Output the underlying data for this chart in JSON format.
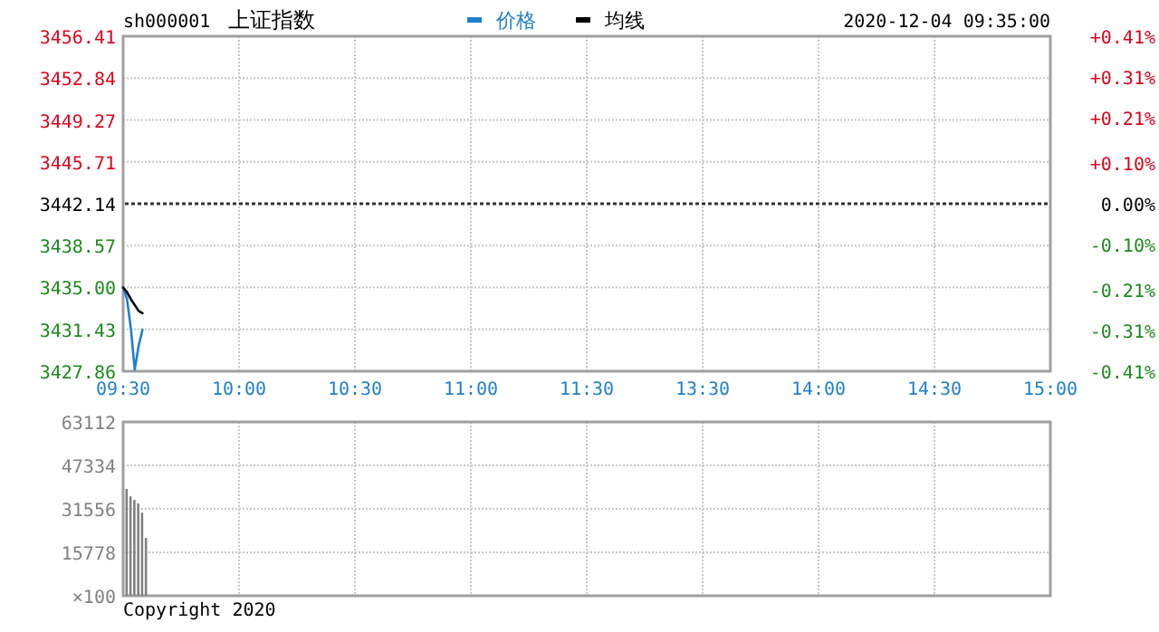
{
  "chart_data": [
    {
      "type": "line",
      "title": "上证指数",
      "annotations": [
        "sh000001",
        "2020-12-04 09:35:00"
      ],
      "legend": "top",
      "grid": true,
      "categories": [
        "09:30",
        null,
        null,
        null,
        null,
        null,
        null,
        null,
        null,
        null,
        null,
        null,
        null,
        null,
        null,
        null,
        null,
        null,
        null,
        null,
        null,
        null,
        null,
        null,
        null,
        null,
        null,
        null,
        null,
        null,
        "10:00",
        null,
        null,
        null,
        null,
        null,
        null,
        null,
        null,
        null,
        null,
        null,
        null,
        null,
        null,
        null,
        null,
        null,
        null,
        null,
        null,
        null,
        null,
        null,
        null,
        null,
        null,
        null,
        null,
        null,
        "10:30",
        null,
        null,
        null,
        null,
        null,
        null,
        null,
        null,
        null,
        null,
        null,
        null,
        null,
        null,
        null,
        null,
        null,
        null,
        null,
        null,
        null,
        null,
        null,
        null,
        null,
        null,
        null,
        null,
        null,
        "11:00",
        null,
        null,
        null,
        null,
        null,
        null,
        null,
        null,
        null,
        null,
        null,
        null,
        null,
        null,
        null,
        null,
        null,
        null,
        null,
        null,
        null,
        null,
        null,
        null,
        null,
        null,
        null,
        null,
        null,
        "11:30",
        null,
        null,
        null,
        null,
        null,
        null,
        null,
        null,
        null,
        null,
        null,
        null,
        null,
        null,
        null,
        null,
        null,
        null,
        null,
        null,
        null,
        null,
        null,
        null,
        null,
        null,
        null,
        null,
        null,
        "13:30",
        null,
        null,
        null,
        null,
        null,
        null,
        null,
        null,
        null,
        null,
        null,
        null,
        null,
        null,
        null,
        null,
        null,
        null,
        null,
        null,
        null,
        null,
        null,
        null,
        null,
        null,
        null,
        null,
        null,
        "14:00",
        null,
        null,
        null,
        null,
        null,
        null,
        null,
        null,
        null,
        null,
        null,
        null,
        null,
        null,
        null,
        null,
        null,
        null,
        null,
        null,
        null,
        null,
        null,
        null,
        null,
        null,
        null,
        null,
        null,
        "14:30",
        null,
        null,
        null,
        null,
        null,
        null,
        null,
        null,
        null,
        null,
        null,
        null,
        null,
        null,
        null,
        null,
        null,
        null,
        null,
        null,
        null,
        null,
        null,
        null,
        null,
        null,
        null,
        null,
        null,
        "15:00"
      ],
      "ylim": [
        3427.86,
        3456.41
      ],
      "yticks": [
        3427.86,
        3431.43,
        {
          "value": 3435.0,
          "label": "3435.00"
        },
        3438.57,
        3442.14,
        3445.71,
        3449.27,
        3452.84,
        3456.41
      ],
      "y2lim": [
        -0.41,
        0.41
      ],
      "y2ticks": [
        {
          "value": -0.41,
          "label": "-0.41%"
        },
        {
          "value": -0.31,
          "label": "-0.31%"
        },
        {
          "value": -0.21,
          "label": "-0.21%"
        },
        {
          "value": -0.1,
          "label": "-0.10%"
        },
        {
          "value": 0,
          "label": "0.00%"
        },
        {
          "value": 0.1,
          "label": "+0.10%"
        },
        {
          "value": 0.21,
          "label": "+0.21%"
        },
        {
          "value": 0.31,
          "label": "+0.31%"
        },
        {
          "value": 0.41,
          "label": "+0.41%"
        }
      ],
      "ref_lines": [
        {
          "axis": "y",
          "value": 3442.14,
          "color": "#333333",
          "line_style": "dotted"
        }
      ],
      "series": [
        {
          "name": "价格",
          "color": "#1f7fd0",
          "values": [
            3435.0,
            3434.0,
            3431.5,
            3428.0,
            3430.0,
            3431.4,
            null,
            null,
            null,
            null,
            null,
            null,
            null,
            null,
            null,
            null,
            null,
            null,
            null,
            null,
            null,
            null,
            null,
            null,
            null,
            null,
            null,
            null,
            null,
            null,
            null,
            null,
            null,
            null,
            null,
            null,
            null,
            null,
            null,
            null,
            null,
            null,
            null,
            null,
            null,
            null,
            null,
            null,
            null,
            null,
            null,
            null,
            null,
            null,
            null,
            null,
            null,
            null,
            null,
            null,
            null,
            null,
            null,
            null,
            null,
            null,
            null,
            null,
            null,
            null,
            null,
            null,
            null,
            null,
            null,
            null,
            null,
            null,
            null,
            null,
            null,
            null,
            null,
            null,
            null,
            null,
            null,
            null,
            null,
            null,
            null,
            null,
            null,
            null,
            null,
            null,
            null,
            null,
            null,
            null,
            null,
            null,
            null,
            null,
            null,
            null,
            null,
            null,
            null,
            null,
            null,
            null,
            null,
            null,
            null,
            null,
            null,
            null,
            null,
            null,
            null,
            null,
            null,
            null,
            null,
            null,
            null,
            null,
            null,
            null,
            null,
            null,
            null,
            null,
            null,
            null,
            null,
            null,
            null,
            null,
            null,
            null,
            null,
            null,
            null,
            null,
            null,
            null,
            null,
            null,
            null,
            null,
            null,
            null,
            null,
            null,
            null,
            null,
            null,
            null,
            null,
            null,
            null,
            null,
            null,
            null,
            null,
            null,
            null,
            null,
            null,
            null,
            null,
            null,
            null,
            null,
            null,
            null,
            null,
            null,
            null,
            null,
            null,
            null,
            null,
            null,
            null,
            null,
            null,
            null,
            null,
            null,
            null,
            null,
            null,
            null,
            null,
            null,
            null,
            null,
            null,
            null,
            null,
            null,
            null,
            null,
            null,
            null,
            null,
            null,
            null,
            null,
            null,
            null,
            null,
            null,
            null,
            null,
            null,
            null,
            null,
            null,
            null,
            null,
            null,
            null,
            null,
            null,
            null,
            null,
            null,
            null,
            null,
            null,
            null,
            null,
            null,
            null,
            null,
            null,
            null
          ]
        },
        {
          "name": "均线",
          "color": "#000000",
          "values": [
            3435.0,
            3434.6,
            3434.0,
            3433.5,
            3433.0,
            3432.8,
            null,
            null,
            null,
            null,
            null,
            null,
            null,
            null,
            null,
            null,
            null,
            null,
            null,
            null,
            null,
            null,
            null,
            null,
            null,
            null,
            null,
            null,
            null,
            null,
            null,
            null,
            null,
            null,
            null,
            null,
            null,
            null,
            null,
            null,
            null,
            null,
            null,
            null,
            null,
            null,
            null,
            null,
            null,
            null,
            null,
            null,
            null,
            null,
            null,
            null,
            null,
            null,
            null,
            null,
            null,
            null,
            null,
            null,
            null,
            null,
            null,
            null,
            null,
            null,
            null,
            null,
            null,
            null,
            null,
            null,
            null,
            null,
            null,
            null,
            null,
            null,
            null,
            null,
            null,
            null,
            null,
            null,
            null,
            null,
            null,
            null,
            null,
            null,
            null,
            null,
            null,
            null,
            null,
            null,
            null,
            null,
            null,
            null,
            null,
            null,
            null,
            null,
            null,
            null,
            null,
            null,
            null,
            null,
            null,
            null,
            null,
            null,
            null,
            null,
            null,
            null,
            null,
            null,
            null,
            null,
            null,
            null,
            null,
            null,
            null,
            null,
            null,
            null,
            null,
            null,
            null,
            null,
            null,
            null,
            null,
            null,
            null,
            null,
            null,
            null,
            null,
            null,
            null,
            null,
            null,
            null,
            null,
            null,
            null,
            null,
            null,
            null,
            null,
            null,
            null,
            null,
            null,
            null,
            null,
            null,
            null,
            null,
            null,
            null,
            null,
            null,
            null,
            null,
            null,
            null,
            null,
            null,
            null,
            null,
            null,
            null,
            null,
            null,
            null,
            null,
            null,
            null,
            null,
            null,
            null,
            null,
            null,
            null,
            null,
            null,
            null,
            null,
            null,
            null,
            null,
            null,
            null,
            null,
            null,
            null,
            null,
            null,
            null,
            null,
            null,
            null,
            null,
            null,
            null,
            null,
            null,
            null,
            null,
            null,
            null,
            null,
            null,
            null,
            null,
            null,
            null,
            null,
            null,
            null,
            null,
            null,
            null,
            null,
            null,
            null,
            null,
            null,
            null,
            null,
            null
          ]
        }
      ]
    },
    {
      "type": "bar",
      "color": "#808080",
      "grid": true,
      "tick_labels": "y",
      "annotations": [
        "Copyright 2020"
      ],
      "categories": [
        null,
        null,
        null,
        null,
        null,
        null,
        null,
        null,
        null,
        null,
        null,
        null,
        null,
        null,
        null,
        null,
        null,
        null,
        null,
        null,
        null,
        null,
        null,
        null,
        null,
        null,
        null,
        null,
        null,
        null,
        null,
        null,
        null,
        null,
        null,
        null,
        null,
        null,
        null,
        null,
        null,
        null,
        null,
        null,
        null,
        null,
        null,
        null,
        null,
        null,
        null,
        null,
        null,
        null,
        null,
        null,
        null,
        null,
        null,
        null,
        null,
        null,
        null,
        null,
        null,
        null,
        null,
        null,
        null,
        null,
        null,
        null,
        null,
        null,
        null,
        null,
        null,
        null,
        null,
        null,
        null,
        null,
        null,
        null,
        null,
        null,
        null,
        null,
        null,
        null,
        null,
        null,
        null,
        null,
        null,
        null,
        null,
        null,
        null,
        null,
        null,
        null,
        null,
        null,
        null,
        null,
        null,
        null,
        null,
        null,
        null,
        null,
        null,
        null,
        null,
        null,
        null,
        null,
        null,
        null,
        null,
        null,
        null,
        null,
        null,
        null,
        null,
        null,
        null,
        null,
        null,
        null,
        null,
        null,
        null,
        null,
        null,
        null,
        null,
        null,
        null,
        null,
        null,
        null,
        null,
        null,
        null,
        null,
        null,
        null,
        null,
        null,
        null,
        null,
        null,
        null,
        null,
        null,
        null,
        null,
        null,
        null,
        null,
        null,
        null,
        null,
        null,
        null,
        null,
        null,
        null,
        null,
        null,
        null,
        null,
        null,
        null,
        null,
        null,
        null,
        null,
        null,
        null,
        null,
        null,
        null,
        null,
        null,
        null,
        null,
        null,
        null,
        null,
        null,
        null,
        null,
        null,
        null,
        null,
        null,
        null,
        null,
        null,
        null,
        null,
        null,
        null,
        null,
        null,
        null,
        null,
        null,
        null,
        null,
        null,
        null,
        null,
        null,
        null,
        null,
        null,
        null,
        null,
        null,
        null,
        null,
        null,
        null,
        null,
        null,
        null,
        null,
        null,
        null,
        null,
        null,
        null,
        null,
        null,
        null,
        null
      ],
      "values": [
        38800,
        36100,
        34800,
        33500,
        30200,
        21000,
        null,
        null,
        null,
        null,
        null,
        null,
        null,
        null,
        null,
        null,
        null,
        null,
        null,
        null,
        null,
        null,
        null,
        null,
        null,
        null,
        null,
        null,
        null,
        null,
        null,
        null,
        null,
        null,
        null,
        null,
        null,
        null,
        null,
        null,
        null,
        null,
        null,
        null,
        null,
        null,
        null,
        null,
        null,
        null,
        null,
        null,
        null,
        null,
        null,
        null,
        null,
        null,
        null,
        null,
        null,
        null,
        null,
        null,
        null,
        null,
        null,
        null,
        null,
        null,
        null,
        null,
        null,
        null,
        null,
        null,
        null,
        null,
        null,
        null,
        null,
        null,
        null,
        null,
        null,
        null,
        null,
        null,
        null,
        null,
        null,
        null,
        null,
        null,
        null,
        null,
        null,
        null,
        null,
        null,
        null,
        null,
        null,
        null,
        null,
        null,
        null,
        null,
        null,
        null,
        null,
        null,
        null,
        null,
        null,
        null,
        null,
        null,
        null,
        null,
        null,
        null,
        null,
        null,
        null,
        null,
        null,
        null,
        null,
        null,
        null,
        null,
        null,
        null,
        null,
        null,
        null,
        null,
        null,
        null,
        null,
        null,
        null,
        null,
        null,
        null,
        null,
        null,
        null,
        null,
        null,
        null,
        null,
        null,
        null,
        null,
        null,
        null,
        null,
        null,
        null,
        null,
        null,
        null,
        null,
        null,
        null,
        null,
        null,
        null,
        null,
        null,
        null,
        null,
        null,
        null,
        null,
        null,
        null,
        null,
        null,
        null,
        null,
        null,
        null,
        null,
        null,
        null,
        null,
        null,
        null,
        null,
        null,
        null,
        null,
        null,
        null,
        null,
        null,
        null,
        null,
        null,
        null,
        null,
        null,
        null,
        null,
        null,
        null,
        null,
        null,
        null,
        null,
        null,
        null,
        null,
        null,
        null,
        null,
        null,
        null,
        null,
        null,
        null,
        null,
        null,
        null,
        null,
        null,
        null,
        null,
        null,
        null,
        null,
        null,
        null,
        null,
        null,
        null,
        null,
        null
      ],
      "ylabel": "×100",
      "ylim": [
        0,
        63112
      ],
      "yticks": [
        {
          "value": 0,
          "label": null
        },
        15778,
        31556,
        47334,
        63112
      ]
    }
  ]
}
